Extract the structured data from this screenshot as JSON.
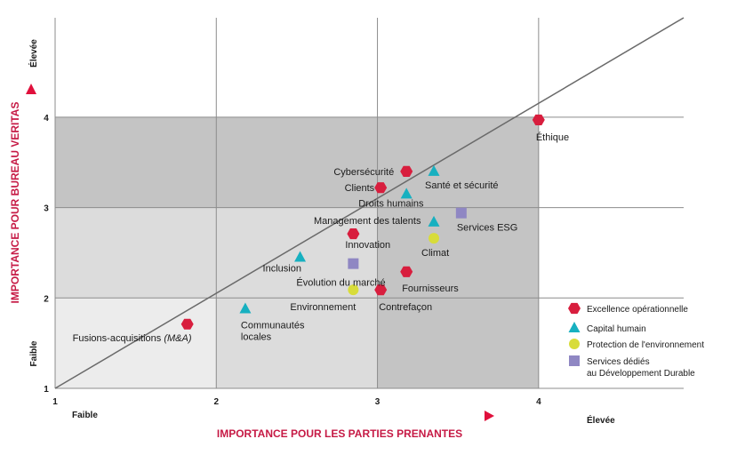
{
  "chart_data": {
    "type": "scatter",
    "xlabel": "IMPORTANCE POUR LES PARTIES PRENANTES",
    "ylabel": "IMPORTANCE POUR BUREAU VERITAS",
    "xlim": [
      1,
      4.9
    ],
    "ylim": [
      1,
      5.1
    ],
    "x_ticks": [
      "1",
      "2",
      "3",
      "4"
    ],
    "y_ticks": [
      "1",
      "2",
      "3",
      "4"
    ],
    "x_low_label": "Faible",
    "x_high_label": "Élevée",
    "y_low_label": "Faible",
    "y_high_label": "Élevée",
    "grid": true,
    "reference_line": {
      "from": [
        1,
        1
      ],
      "to": [
        4.9,
        5.1
      ]
    },
    "zones": [
      {
        "x": [
          1,
          2
        ],
        "y": [
          1,
          2
        ],
        "color": "#ececec"
      },
      {
        "x": [
          2,
          3
        ],
        "y": [
          1,
          2
        ],
        "color": "#dcdcdc"
      },
      {
        "x": [
          3,
          4
        ],
        "y": [
          1,
          2
        ],
        "color": "#c4c4c4"
      },
      {
        "x": [
          1,
          3
        ],
        "y": [
          2,
          3
        ],
        "color": "#dcdcdc"
      },
      {
        "x": [
          3,
          4
        ],
        "y": [
          2,
          3
        ],
        "color": "#c4c4c4"
      },
      {
        "x": [
          1,
          4
        ],
        "y": [
          3,
          4
        ],
        "color": "#c4c4c4"
      }
    ],
    "legend_position": "bottom-right",
    "series": [
      {
        "name": "Excellence opérationnelle",
        "marker": "hexagon",
        "color": "#d81e3e",
        "points": [
          {
            "label": "Éthique",
            "x": 4.0,
            "y": 3.97
          },
          {
            "label": "Cybersécurité",
            "x": 3.18,
            "y": 3.4
          },
          {
            "label": "Clients",
            "x": 3.02,
            "y": 3.22
          },
          {
            "label": "Innovation",
            "x": 2.85,
            "y": 2.71
          },
          {
            "label": "Fournisseurs",
            "x": 3.18,
            "y": 2.29
          },
          {
            "label": "Contrefaçon",
            "x": 3.02,
            "y": 2.09
          },
          {
            "label": "Fusions-acquisitions",
            "label_suffix": "(M&A)",
            "x": 1.82,
            "y": 1.71
          }
        ]
      },
      {
        "name": "Capital humain",
        "marker": "triangle",
        "color": "#17b0c0",
        "points": [
          {
            "label": "Santé et sécurité",
            "x": 3.35,
            "y": 3.4
          },
          {
            "label": "Droits humains",
            "x": 3.18,
            "y": 3.15
          },
          {
            "label": "Management des talents",
            "x": 3.35,
            "y": 2.84
          },
          {
            "label": "Inclusion",
            "x": 2.52,
            "y": 2.45
          },
          {
            "label": "Communautés locales",
            "x": 2.18,
            "y": 1.88
          }
        ]
      },
      {
        "name": "Protection de l'environnement",
        "marker": "circle",
        "color": "#d8dc3a",
        "points": [
          {
            "label": "Climat",
            "x": 3.35,
            "y": 2.66
          },
          {
            "label": "Environnement",
            "x": 2.85,
            "y": 2.09
          }
        ]
      },
      {
        "name": "Services dédiés au Développement Durable",
        "marker": "square",
        "color": "#8f87c3",
        "points": [
          {
            "label": "Services ESG",
            "x": 3.52,
            "y": 2.94
          },
          {
            "label": "Évolution du marché",
            "x": 2.85,
            "y": 2.38
          }
        ]
      }
    ]
  }
}
